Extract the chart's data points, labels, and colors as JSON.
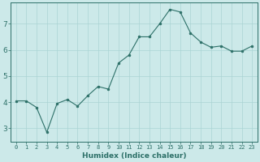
{
  "x": [
    0,
    1,
    2,
    3,
    4,
    5,
    6,
    7,
    8,
    9,
    10,
    11,
    12,
    13,
    14,
    15,
    16,
    17,
    18,
    19,
    20,
    21,
    22,
    23
  ],
  "y": [
    4.05,
    4.05,
    3.8,
    2.85,
    3.95,
    4.1,
    3.85,
    4.25,
    4.6,
    4.5,
    5.5,
    5.8,
    6.5,
    6.5,
    7.0,
    7.55,
    7.45,
    6.65,
    6.3,
    6.1,
    6.15,
    5.95,
    5.95,
    6.15
  ],
  "line_color": "#2d7068",
  "marker_color": "#2d7068",
  "bg_color": "#cce9e9",
  "grid_color": "#aad4d4",
  "axis_color": "#2d7068",
  "xlabel": "Humidex (Indice chaleur)",
  "ylim": [
    2.5,
    7.8
  ],
  "xlim": [
    -0.5,
    23.5
  ],
  "yticks": [
    3,
    4,
    5,
    6,
    7
  ],
  "xticks": [
    0,
    1,
    2,
    3,
    4,
    5,
    6,
    7,
    8,
    9,
    10,
    11,
    12,
    13,
    14,
    15,
    16,
    17,
    18,
    19,
    20,
    21,
    22,
    23
  ],
  "xlabel_fontsize": 6.5,
  "tick_fontsize_x": 5.0,
  "tick_fontsize_y": 6.5
}
